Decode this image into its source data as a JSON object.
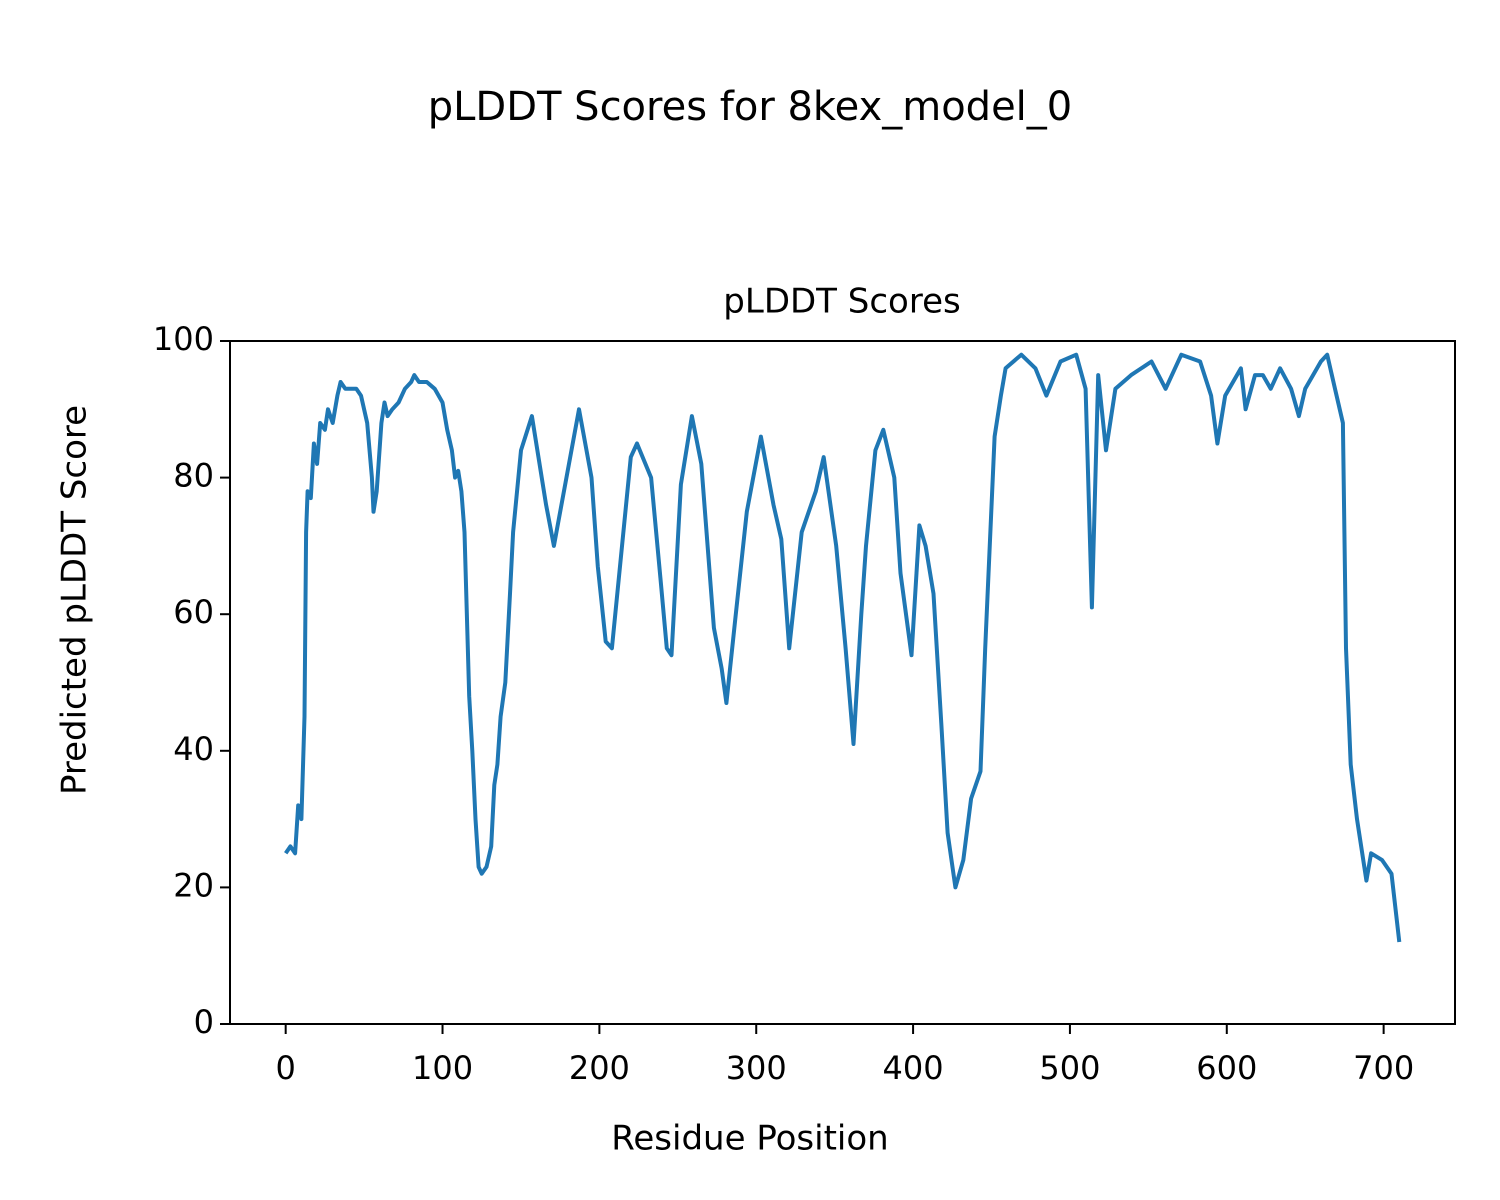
{
  "chart_data": {
    "type": "line",
    "title": "pLDDT Scores for 8kex_model_0",
    "subtitle": "pLDDT Scores",
    "xlabel": "Residue Position",
    "ylabel": "Predicted pLDDT Score",
    "xlim": [
      -35.5,
      745.5
    ],
    "ylim": [
      0,
      100
    ],
    "xticks": [
      0,
      100,
      200,
      300,
      400,
      500,
      600,
      700
    ],
    "yticks": [
      0,
      20,
      40,
      60,
      80,
      100
    ],
    "grid": false,
    "series": [
      {
        "name": "pLDDT",
        "color": "#1f77b4",
        "x": [
          0,
          3,
          6,
          8,
          10,
          12,
          13,
          14,
          16,
          18,
          20,
          22,
          25,
          27,
          30,
          33,
          35,
          38,
          42,
          45,
          48,
          50,
          52,
          55,
          56,
          58,
          61,
          63,
          65,
          68,
          72,
          76,
          80,
          82,
          85,
          90,
          95,
          100,
          103,
          106,
          108,
          110,
          112,
          114,
          117,
          119,
          121,
          123,
          125,
          128,
          131,
          133,
          135,
          137,
          140,
          143,
          145,
          150,
          157,
          166,
          171,
          187,
          195,
          199,
          204,
          208,
          220,
          224,
          233,
          239,
          243,
          246,
          252,
          259,
          265,
          273,
          278,
          281,
          287,
          294,
          303,
          311,
          316,
          321,
          329,
          338,
          343,
          351,
          357,
          362,
          367,
          370,
          376,
          381,
          388,
          392,
          399,
          404,
          408,
          413,
          418,
          422,
          427,
          432,
          437,
          443,
          446,
          452,
          456,
          459,
          469,
          478,
          485,
          494,
          504,
          510,
          514,
          518,
          523,
          529,
          539,
          552,
          561,
          571,
          583,
          590,
          594,
          599,
          609,
          612,
          618,
          623,
          628,
          634,
          641,
          646,
          650,
          660,
          664,
          669,
          674,
          676,
          679,
          683,
          689,
          692,
          699,
          705,
          710
        ],
        "values": [
          25,
          26,
          25,
          32,
          30,
          45,
          72,
          78,
          77,
          85,
          82,
          88,
          87,
          90,
          88,
          92,
          94,
          93,
          93,
          93,
          92,
          90,
          88,
          80,
          75,
          78,
          88,
          91,
          89,
          90,
          91,
          93,
          94,
          95,
          94,
          94,
          93,
          91,
          87,
          84,
          80,
          81,
          78,
          72,
          48,
          40,
          30,
          23,
          22,
          23,
          26,
          35,
          38,
          45,
          50,
          63,
          72,
          84,
          89,
          76,
          70,
          90,
          80,
          67,
          56,
          55,
          83,
          85,
          80,
          65,
          55,
          54,
          79,
          89,
          82,
          58,
          52,
          47,
          60,
          75,
          86,
          76,
          71,
          55,
          72,
          78,
          83,
          70,
          55,
          41,
          60,
          70,
          84,
          87,
          80,
          66,
          54,
          73,
          70,
          63,
          44,
          28,
          20,
          24,
          33,
          37,
          55,
          86,
          92,
          96,
          98,
          96,
          92,
          97,
          98,
          93,
          61,
          95,
          84,
          93,
          95,
          97,
          93,
          98,
          97,
          92,
          85,
          92,
          96,
          90,
          95,
          95,
          93,
          96,
          93,
          89,
          93,
          97,
          98,
          93,
          88,
          55,
          38,
          30,
          21,
          25,
          24,
          22,
          12
        ]
      }
    ]
  }
}
